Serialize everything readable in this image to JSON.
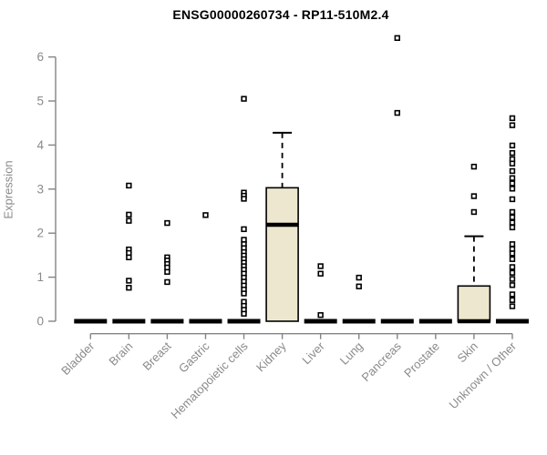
{
  "page": {
    "background": "#ffffff"
  },
  "chart_data": {
    "type": "boxplot",
    "title": "ENSG00000260734 - RP11-510M2.4",
    "ylabel": "Expression",
    "xlabel": "",
    "ylim": [
      0,
      6.6
    ],
    "yticks": [
      0,
      1,
      2,
      3,
      4,
      5,
      6
    ],
    "grid": false,
    "legend": "none",
    "categories": [
      "Bladder",
      "Brain",
      "Breast",
      "Gastric",
      "Hematopoietic cells",
      "Kidney",
      "Liver",
      "Lung",
      "Pancreas",
      "Prostate",
      "Skin",
      "Unknown / Other"
    ],
    "groups": [
      {
        "category": "Bladder",
        "q1": 0,
        "median": 0,
        "q3": 0,
        "whisker_low": 0,
        "whisker_high": 0,
        "outliers": []
      },
      {
        "category": "Brain",
        "q1": 0,
        "median": 0,
        "q3": 0,
        "whisker_low": 0,
        "whisker_high": 0,
        "outliers": [
          3.08,
          2.42,
          2.28,
          1.63,
          1.55,
          1.45,
          0.92,
          0.76
        ]
      },
      {
        "category": "Breast",
        "q1": 0,
        "median": 0,
        "q3": 0,
        "whisker_low": 0,
        "whisker_high": 0,
        "outliers": [
          2.23,
          1.45,
          1.38,
          1.3,
          1.22,
          1.12,
          0.89
        ]
      },
      {
        "category": "Gastric",
        "q1": 0,
        "median": 0,
        "q3": 0,
        "whisker_low": 0,
        "whisker_high": 0,
        "outliers": [
          2.41
        ]
      },
      {
        "category": "Hematopoietic cells",
        "q1": 0,
        "median": 0,
        "q3": 0,
        "whisker_low": 0,
        "whisker_high": 0,
        "outliers": [
          5.05,
          2.92,
          2.85,
          2.78,
          2.09,
          1.85,
          1.75,
          1.66,
          1.57,
          1.49,
          1.41,
          1.33,
          1.25,
          1.17,
          1.08,
          0.99,
          0.9,
          0.81,
          0.72,
          0.63,
          0.44,
          0.35,
          0.26,
          0.17
        ]
      },
      {
        "category": "Kidney",
        "q1": 0,
        "median": 2.19,
        "q3": 3.03,
        "whisker_low": 0,
        "whisker_high": 4.28,
        "outliers": []
      },
      {
        "category": "Liver",
        "q1": 0,
        "median": 0,
        "q3": 0,
        "whisker_low": 0,
        "whisker_high": 0,
        "outliers": [
          1.25,
          1.08,
          0.14
        ]
      },
      {
        "category": "Lung",
        "q1": 0,
        "median": 0,
        "q3": 0,
        "whisker_low": 0,
        "whisker_high": 0,
        "outliers": [
          0.99,
          0.79
        ]
      },
      {
        "category": "Pancreas",
        "q1": 0,
        "median": 0,
        "q3": 0,
        "whisker_low": 0,
        "whisker_high": 0,
        "outliers": [
          6.43,
          4.73
        ]
      },
      {
        "category": "Prostate",
        "q1": 0,
        "median": 0,
        "q3": 0,
        "whisker_low": 0,
        "whisker_high": 0,
        "outliers": []
      },
      {
        "category": "Skin",
        "q1": 0,
        "median": 0,
        "q3": 0.8,
        "whisker_low": 0,
        "whisker_high": 1.93,
        "outliers": [
          3.51,
          2.84,
          2.48
        ]
      },
      {
        "category": "Unknown / Other",
        "q1": 0,
        "median": 0,
        "q3": 0,
        "whisker_low": 0,
        "whisker_high": 0,
        "outliers": [
          4.61,
          4.45,
          3.99,
          3.82,
          3.68,
          3.58,
          3.41,
          3.25,
          3.13,
          3.01,
          2.77,
          2.48,
          2.36,
          2.24,
          2.13,
          1.75,
          1.64,
          1.54,
          1.41,
          1.23,
          1.1,
          0.96,
          0.82,
          0.61,
          0.48,
          0.34
        ]
      }
    ],
    "colors": {
      "box_fill": "#ECE7CE",
      "box_stroke": "#000000",
      "median": "#000000",
      "whisker": "#000000",
      "outlier": "#000000",
      "axis": "#848484",
      "tick_label": "#8a8a8a",
      "title": "#000000",
      "background": "#ffffff"
    }
  }
}
